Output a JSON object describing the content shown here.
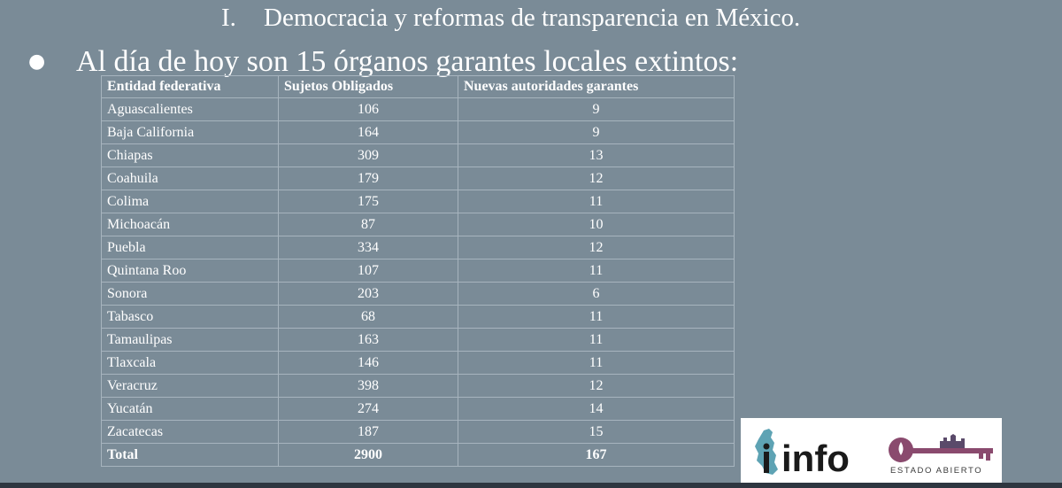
{
  "heading": {
    "numeral": "I.",
    "title": "Democracia y reformas de transparencia en México."
  },
  "bullet": {
    "symbol": "●",
    "text": "Al día de hoy son 15 órganos garantes locales extintos:"
  },
  "table": {
    "headers": [
      "Entidad federativa",
      "Sujetos Obligados",
      "Nuevas autoridades garantes"
    ],
    "rows": [
      [
        "Aguascalientes",
        "106",
        "9"
      ],
      [
        "Baja California",
        "164",
        "9"
      ],
      [
        "Chiapas",
        "309",
        "13"
      ],
      [
        "Coahuila",
        "179",
        "12"
      ],
      [
        "Colima",
        "175",
        "11"
      ],
      [
        "Michoacán",
        "87",
        "10"
      ],
      [
        "Puebla",
        "334",
        "12"
      ],
      [
        "Quintana Roo",
        "107",
        "11"
      ],
      [
        "Sonora",
        "203",
        "6"
      ],
      [
        "Tabasco",
        "68",
        "11"
      ],
      [
        "Tamaulipas",
        "163",
        "11"
      ],
      [
        "Tlaxcala",
        "146",
        "11"
      ],
      [
        "Veracruz",
        "398",
        "12"
      ],
      [
        "Yucatán",
        "274",
        "14"
      ],
      [
        "Zacatecas",
        "187",
        "15"
      ]
    ],
    "total": [
      "Total",
      "2900",
      "167"
    ]
  },
  "logos": {
    "info_text": "info",
    "estado_text": "ESTADO ABIERTO"
  },
  "colors": {
    "background": "#7a8b97",
    "text": "#ffffff",
    "info_blue": "#5ea3b4",
    "info_dark": "#1a1a1a",
    "estado_purple": "#8a4a6e",
    "bottom_bar": "#2e3640"
  }
}
